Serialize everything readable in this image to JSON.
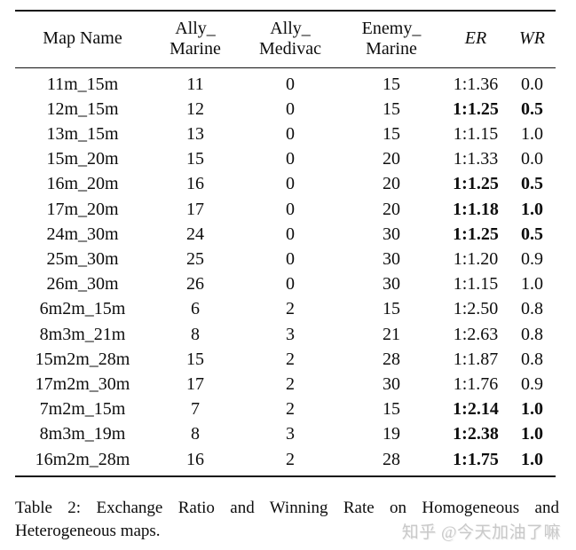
{
  "table": {
    "columns": [
      {
        "id": "map",
        "line1": "Map Name",
        "line2": "",
        "italic": false
      },
      {
        "id": "ally_marine",
        "line1": "Ally_",
        "line2": "Marine",
        "italic": false
      },
      {
        "id": "ally_medivac",
        "line1": "Ally_",
        "line2": "Medivac",
        "italic": false
      },
      {
        "id": "enemy_marine",
        "line1": "Enemy_",
        "line2": "Marine",
        "italic": false
      },
      {
        "id": "er",
        "line1": "ER",
        "line2": "",
        "italic": true
      },
      {
        "id": "wr",
        "line1": "WR",
        "line2": "",
        "italic": true
      }
    ],
    "rows": [
      {
        "map": "11m_15m",
        "ally_marine": "11",
        "ally_medivac": "0",
        "enemy_marine": "15",
        "er": "1:1.36",
        "wr": "0.0",
        "bold": false
      },
      {
        "map": "12m_15m",
        "ally_marine": "12",
        "ally_medivac": "0",
        "enemy_marine": "15",
        "er": "1:1.25",
        "wr": "0.5",
        "bold": true
      },
      {
        "map": "13m_15m",
        "ally_marine": "13",
        "ally_medivac": "0",
        "enemy_marine": "15",
        "er": "1:1.15",
        "wr": "1.0",
        "bold": false
      },
      {
        "map": "15m_20m",
        "ally_marine": "15",
        "ally_medivac": "0",
        "enemy_marine": "20",
        "er": "1:1.33",
        "wr": "0.0",
        "bold": false
      },
      {
        "map": "16m_20m",
        "ally_marine": "16",
        "ally_medivac": "0",
        "enemy_marine": "20",
        "er": "1:1.25",
        "wr": "0.5",
        "bold": true
      },
      {
        "map": "17m_20m",
        "ally_marine": "17",
        "ally_medivac": "0",
        "enemy_marine": "20",
        "er": "1:1.18",
        "wr": "1.0",
        "bold": true
      },
      {
        "map": "24m_30m",
        "ally_marine": "24",
        "ally_medivac": "0",
        "enemy_marine": "30",
        "er": "1:1.25",
        "wr": "0.5",
        "bold": true
      },
      {
        "map": "25m_30m",
        "ally_marine": "25",
        "ally_medivac": "0",
        "enemy_marine": "30",
        "er": "1:1.20",
        "wr": "0.9",
        "bold": false
      },
      {
        "map": "26m_30m",
        "ally_marine": "26",
        "ally_medivac": "0",
        "enemy_marine": "30",
        "er": "1:1.15",
        "wr": "1.0",
        "bold": false
      },
      {
        "map": "6m2m_15m",
        "ally_marine": "6",
        "ally_medivac": "2",
        "enemy_marine": "15",
        "er": "1:2.50",
        "wr": "0.8",
        "bold": false
      },
      {
        "map": "8m3m_21m",
        "ally_marine": "8",
        "ally_medivac": "3",
        "enemy_marine": "21",
        "er": "1:2.63",
        "wr": "0.8",
        "bold": false
      },
      {
        "map": "15m2m_28m",
        "ally_marine": "15",
        "ally_medivac": "2",
        "enemy_marine": "28",
        "er": "1:1.87",
        "wr": "0.8",
        "bold": false
      },
      {
        "map": "17m2m_30m",
        "ally_marine": "17",
        "ally_medivac": "2",
        "enemy_marine": "30",
        "er": "1:1.76",
        "wr": "0.9",
        "bold": false
      },
      {
        "map": "7m2m_15m",
        "ally_marine": "7",
        "ally_medivac": "2",
        "enemy_marine": "15",
        "er": "1:2.14",
        "wr": "1.0",
        "bold": true
      },
      {
        "map": "8m3m_19m",
        "ally_marine": "8",
        "ally_medivac": "3",
        "enemy_marine": "19",
        "er": "1:2.38",
        "wr": "1.0",
        "bold": true
      },
      {
        "map": "16m2m_28m",
        "ally_marine": "16",
        "ally_medivac": "2",
        "enemy_marine": "28",
        "er": "1:1.75",
        "wr": "1.0",
        "bold": true
      }
    ]
  },
  "caption": {
    "text": "Table 2:  Exchange Ratio and Winning Rate on Homogeneous and Heterogeneous maps."
  },
  "watermark": {
    "text": "知乎 @今天加油了嘛",
    "color": "#c9c9c9"
  }
}
